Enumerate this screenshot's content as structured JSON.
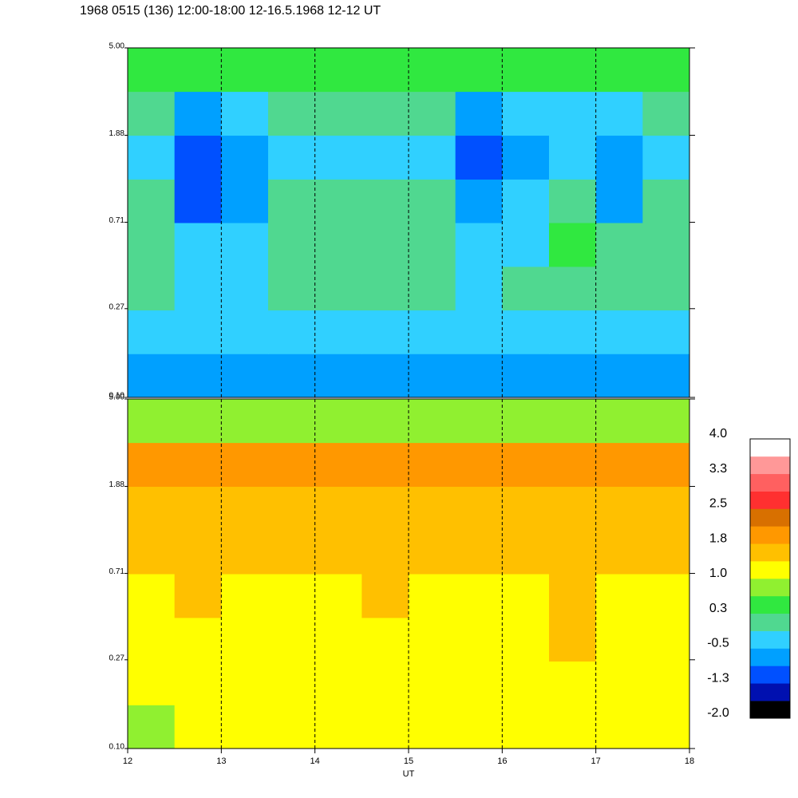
{
  "title": "1968 0515 (136) 12:00-18:00 12-16.5.1968  12-12 UT",
  "chart_data": [
    {
      "type": "heatmap",
      "ylog": true,
      "xlim": [
        12,
        18
      ],
      "ylim": [
        0.1,
        5
      ],
      "yticks": [
        {
          "value": 0.1,
          "label": "0.10"
        },
        0.27,
        0.71,
        1.88,
        {
          "value": 5,
          "label": "5.00"
        }
      ],
      "vlines": [
        13,
        14,
        15,
        16,
        17
      ],
      "xbins": [
        12,
        12.5,
        13,
        13.5,
        14,
        14.5,
        15,
        15.5,
        16,
        16.5,
        17,
        17.5,
        18
      ],
      "ybins": [
        0.1,
        0.163,
        0.266,
        0.433,
        0.707,
        1.15,
        1.88,
        3.07,
        5
      ],
      "z": [
        [
          -0.6,
          -0.7,
          -0.7,
          -0.6,
          -0.6,
          -0.6,
          -0.6,
          -0.6,
          -0.6,
          -0.6,
          -0.6,
          -0.6
        ],
        [
          -0.4,
          -0.5,
          -0.5,
          -0.4,
          -0.4,
          -0.4,
          -0.4,
          -0.4,
          -0.4,
          -0.4,
          -0.4,
          -0.4
        ],
        [
          -0.1,
          -0.2,
          -0.2,
          0.0,
          -0.1,
          0.0,
          -0.1,
          -0.2,
          -0.1,
          0.0,
          -0.1,
          -0.1
        ],
        [
          0.1,
          -0.3,
          -0.3,
          0.1,
          0.1,
          0.1,
          0.0,
          -0.3,
          -0.2,
          0.3,
          -0.1,
          0.1
        ],
        [
          0.0,
          -0.9,
          -0.7,
          0.0,
          0.1,
          0.0,
          0.0,
          -0.8,
          -0.5,
          0.0,
          -0.6,
          0.0
        ],
        [
          -0.2,
          -1.0,
          -0.8,
          -0.2,
          -0.2,
          -0.2,
          -0.2,
          -1.0,
          -0.7,
          -0.4,
          -0.8,
          -0.2
        ],
        [
          0.1,
          -0.6,
          -0.3,
          0.1,
          0.0,
          0.1,
          0.0,
          -0.6,
          -0.3,
          -0.2,
          -0.4,
          0.1
        ],
        [
          0.4,
          0.3,
          0.3,
          0.4,
          0.3,
          0.4,
          0.3,
          0.3,
          0.3,
          0.4,
          0.3,
          0.4
        ]
      ]
    },
    {
      "type": "heatmap",
      "ylog": true,
      "xlim": [
        12,
        18
      ],
      "ylim": [
        0.1,
        5
      ],
      "xticks": [
        12,
        13,
        14,
        15,
        16,
        17,
        18
      ],
      "xlabel": "UT",
      "yticks": [
        {
          "value": 0.1,
          "label": "0.10"
        },
        0.27,
        0.71,
        1.88,
        {
          "value": 5,
          "label": "5.00"
        }
      ],
      "vlines": [
        13,
        14,
        15,
        16,
        17
      ],
      "xbins": [
        12,
        12.5,
        13,
        13.5,
        14,
        14.5,
        15,
        15.5,
        16,
        16.5,
        17,
        17.5,
        18
      ],
      "ybins": [
        0.1,
        0.163,
        0.266,
        0.433,
        0.707,
        1.15,
        1.88,
        3.07,
        5
      ],
      "z": [
        [
          0.9,
          1.0,
          1.0,
          1.0,
          1.0,
          1.0,
          1.0,
          1.0,
          1.0,
          1.0,
          1.0,
          1.0
        ],
        [
          1.1,
          1.0,
          1.1,
          1.1,
          1.1,
          1.1,
          1.0,
          1.1,
          1.1,
          1.2,
          1.1,
          1.1
        ],
        [
          1.1,
          1.2,
          1.1,
          1.2,
          1.2,
          1.2,
          1.1,
          1.2,
          1.1,
          1.5,
          1.2,
          1.1
        ],
        [
          1.3,
          1.4,
          1.3,
          1.3,
          1.3,
          1.4,
          1.3,
          1.3,
          1.3,
          1.6,
          1.3,
          1.3
        ],
        [
          1.4,
          1.4,
          1.4,
          1.4,
          1.5,
          1.4,
          1.4,
          1.4,
          1.4,
          1.4,
          1.4,
          1.4
        ],
        [
          1.5,
          1.6,
          1.5,
          1.6,
          1.6,
          1.6,
          1.5,
          1.6,
          1.6,
          1.6,
          1.5,
          1.6
        ],
        [
          1.8,
          1.8,
          1.9,
          1.8,
          1.8,
          1.9,
          1.8,
          1.8,
          1.9,
          1.8,
          1.8,
          1.8
        ],
        [
          0.8,
          0.9,
          0.8,
          0.9,
          0.8,
          0.9,
          0.8,
          0.9,
          0.8,
          0.9,
          0.8,
          0.9
        ]
      ],
      "clim": [
        -2,
        4
      ],
      "cticks": [
        {
          "value": -2,
          "label": "-2.0"
        },
        {
          "value": -1.25,
          "label": "-1.3"
        },
        -0.5,
        {
          "value": 0.25,
          "label": "0.3"
        },
        {
          "value": 1,
          "label": "1.0"
        },
        {
          "value": 1.75,
          "label": "1.8"
        },
        2.5,
        {
          "value": 3.25,
          "label": "3.3"
        },
        {
          "value": 4,
          "label": "4.0"
        }
      ],
      "colors": [
        "#000000",
        "#0010b0",
        "#0050ff",
        "#00a0ff",
        "#30d0ff",
        "#50d890",
        "#30e840",
        "#90f030",
        "#ffff00",
        "#ffc000",
        "#ff9800",
        "#d87000",
        "#ff3030",
        "#ff6060",
        "#ff9898",
        "#ffffff"
      ]
    }
  ]
}
